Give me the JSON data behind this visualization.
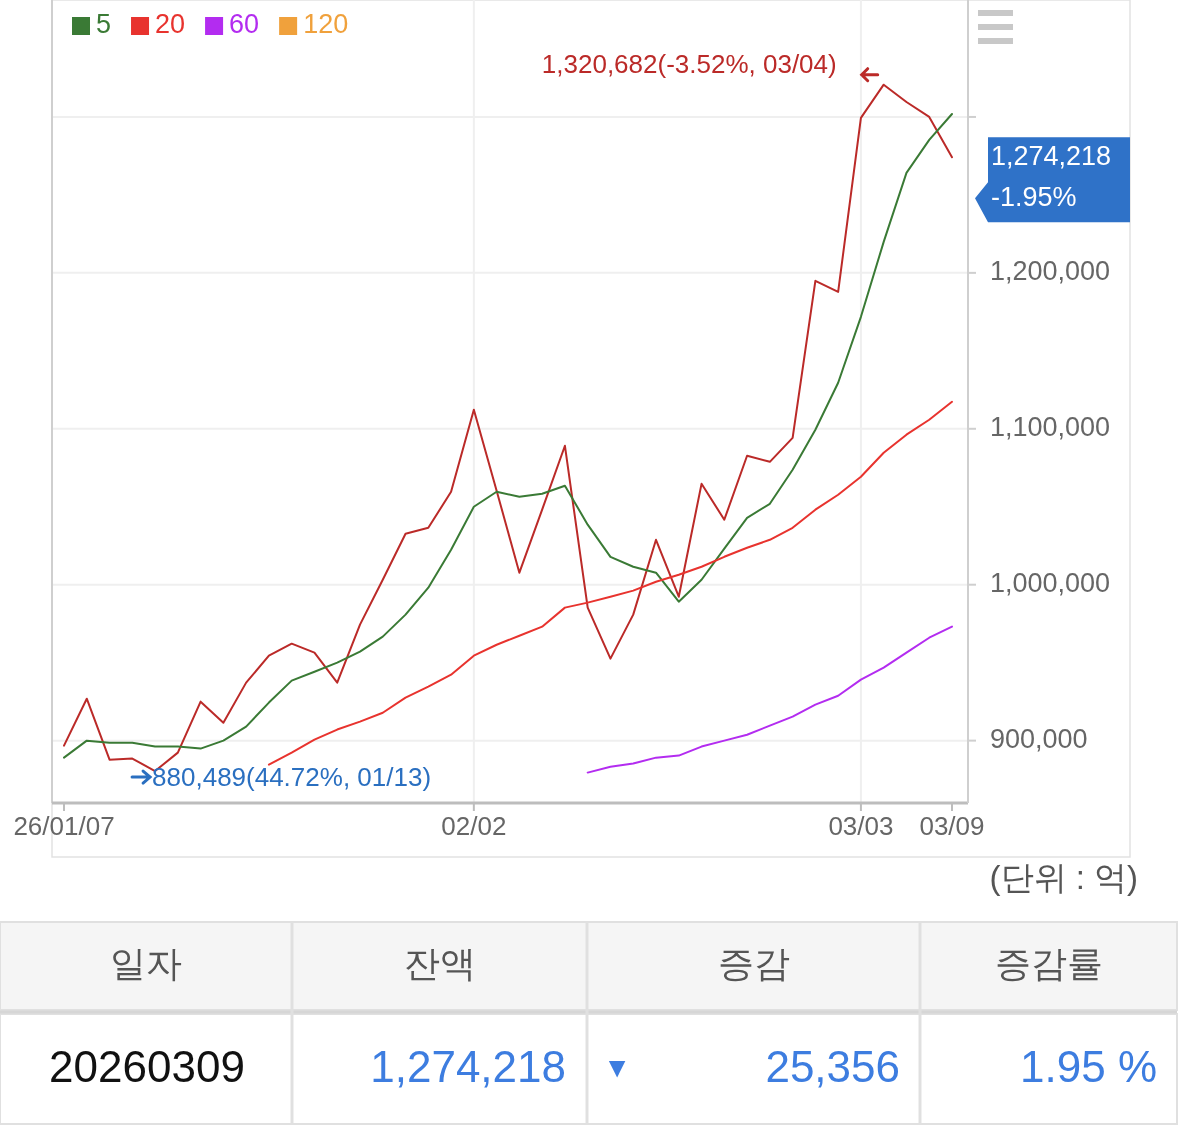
{
  "chart_data": {
    "type": "line",
    "categories": [
      "26/01/07",
      null,
      null,
      null,
      null,
      null,
      null,
      null,
      null,
      null,
      null,
      null,
      null,
      null,
      null,
      null,
      null,
      null,
      "02/02",
      null,
      null,
      null,
      null,
      null,
      null,
      null,
      null,
      null,
      null,
      null,
      null,
      null,
      null,
      null,
      null,
      "03/03",
      null,
      null,
      null,
      "03/09"
    ],
    "series": [
      {
        "color": "#bb2a28",
        "values": [
          896800,
          926900,
          887800,
          888500,
          880489,
          892300,
          925000,
          911500,
          937200,
          954500,
          962200,
          956400,
          937200,
          974400,
          1003200,
          1032700,
          1036500,
          1059600,
          1112200,
          1060300,
          1007700,
          1048100,
          1089100,
          985300,
          952600,
          980800,
          1028800,
          992300,
          1064700,
          1041700,
          1082700,
          1078800,
          1094200,
          1194900,
          1187800,
          1299400,
          1320682,
          1309600,
          1300000,
          1274218
        ]
      },
      {
        "name": "5",
        "color": "#3a7a35",
        "values": [
          889100,
          900000,
          898700,
          898700,
          896200,
          896200,
          894900,
          900000,
          909000,
          924400,
          938500,
          944200,
          950000,
          957100,
          966700,
          980800,
          998100,
          1022400,
          1050000,
          1059600,
          1056400,
          1058300,
          1063500,
          1038500,
          1017900,
          1011500,
          1007700,
          989100,
          1003200,
          1023100,
          1042900,
          1051900,
          1073700,
          1099400,
          1129500,
          1171800,
          1219900,
          1264100,
          1285300,
          1301900
        ]
      },
      {
        "name": "20",
        "color": "#e8332e",
        "values": [
          null,
          null,
          null,
          null,
          null,
          null,
          null,
          null,
          null,
          884600,
          892300,
          900600,
          907100,
          912200,
          917900,
          927600,
          934600,
          942300,
          954500,
          961500,
          967300,
          973100,
          985300,
          988500,
          992300,
          996200,
          1001900,
          1006400,
          1011500,
          1017900,
          1023700,
          1028800,
          1036500,
          1048100,
          1057700,
          1069200,
          1084600,
          1096200,
          1105800,
          1117300
        ]
      },
      {
        "name": "60",
        "color": "#b32cf0",
        "values": [
          null,
          null,
          null,
          null,
          null,
          null,
          null,
          null,
          null,
          null,
          null,
          null,
          null,
          null,
          null,
          null,
          null,
          null,
          null,
          null,
          null,
          null,
          null,
          879500,
          883300,
          885300,
          889100,
          890400,
          896200,
          900000,
          903800,
          909600,
          915400,
          923100,
          928800,
          939100,
          946800,
          956400,
          966000,
          973100
        ]
      },
      {
        "name": "120",
        "color": "#f0a13c",
        "values": [
          null,
          null,
          null,
          null,
          null,
          null,
          null,
          null,
          null,
          null,
          null,
          null,
          null,
          null,
          null,
          null,
          null,
          null,
          null,
          null,
          null,
          null,
          null,
          null,
          null,
          null,
          null,
          null,
          null,
          null,
          null,
          null,
          null,
          null,
          null,
          null,
          null,
          null,
          null,
          null
        ]
      }
    ],
    "ylim": [
      860000,
      1375000
    ],
    "yticks": [
      {
        "value": 900000,
        "label": "900,000"
      },
      {
        "value": 1000000,
        "label": "1,000,000"
      },
      {
        "value": 1100000,
        "label": "1,100,000"
      },
      {
        "value": 1200000,
        "label": "1,200,000"
      },
      {
        "value": 1300000,
        "label": null
      }
    ],
    "grid": true,
    "legend": "top left",
    "annotations": [
      "1,320,682(-3.52%, 03/04)",
      "880,489(44.72%, 01/13)",
      "1,274,218",
      "-1.95%",
      "(단위 : 억)",
      "일자",
      "잔액",
      "증감",
      "증감률",
      "20260309",
      "1,274,218",
      "▼",
      "25,356",
      "1.95 %"
    ]
  }
}
